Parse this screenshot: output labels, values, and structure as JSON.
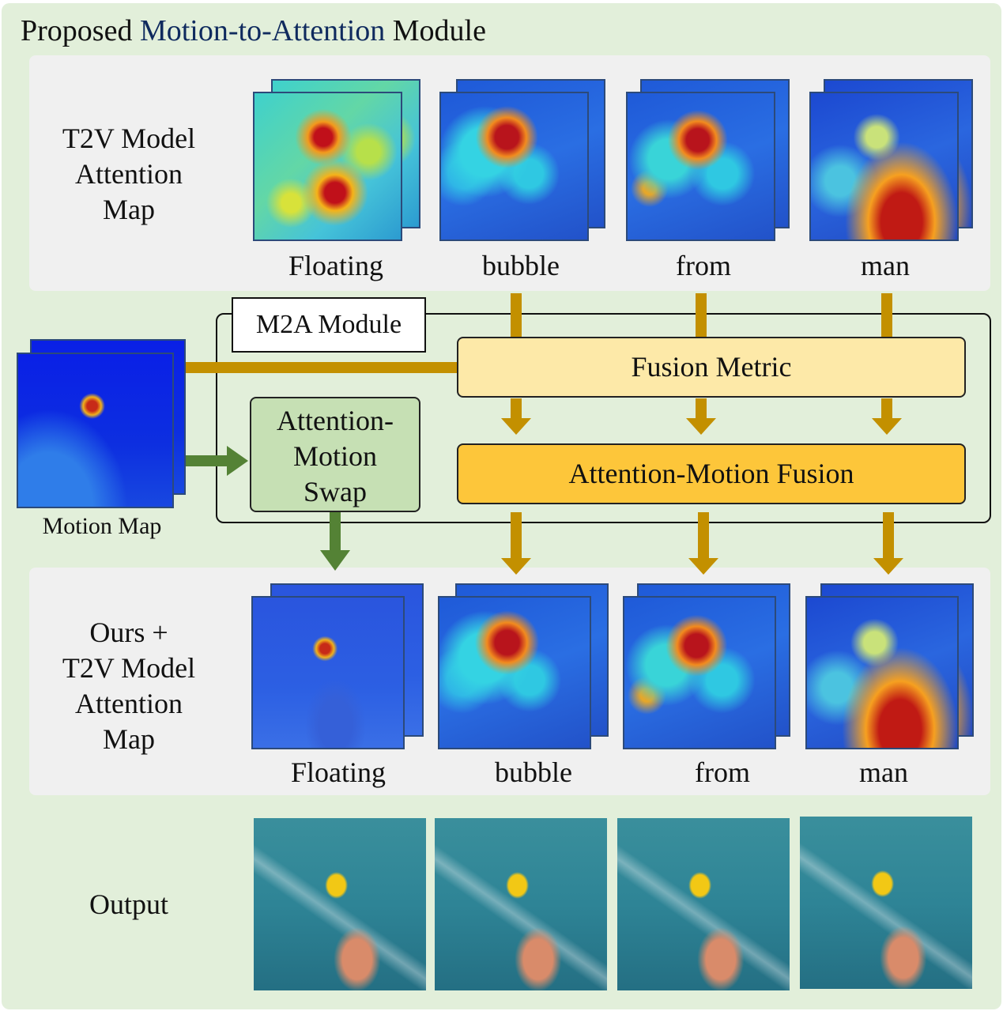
{
  "title": {
    "prefix": "Proposed",
    "highlight": "Motion-to-Attention",
    "suffix": "Module"
  },
  "top_row": {
    "label_lines": [
      "T2V Model",
      "Attention",
      "Map"
    ],
    "words": [
      "Floating",
      "bubble",
      "from",
      "man"
    ]
  },
  "module": {
    "label": "M2A Module",
    "fusion_metric": "Fusion Metric",
    "fusion": "Attention-Motion Fusion",
    "swap_lines": [
      "Attention-",
      "Motion",
      "Swap"
    ],
    "motion_map_label": "Motion Map"
  },
  "bottom_row": {
    "label_lines": [
      "Ours +",
      "T2V Model",
      "Attention",
      "Map"
    ],
    "words": [
      "Floating",
      "bubble",
      "from",
      "man"
    ]
  },
  "output": {
    "label": "Output"
  },
  "colors": {
    "background": "#e2efda",
    "panel": "#f0f0f0",
    "gold_arrow": "#c39000",
    "green_arrow": "#548235",
    "fusion_metric": "#fde9a8",
    "fusion": "#fdc63a",
    "swap": "#c6e0b4",
    "title_highlight": "#0f2a5e"
  }
}
